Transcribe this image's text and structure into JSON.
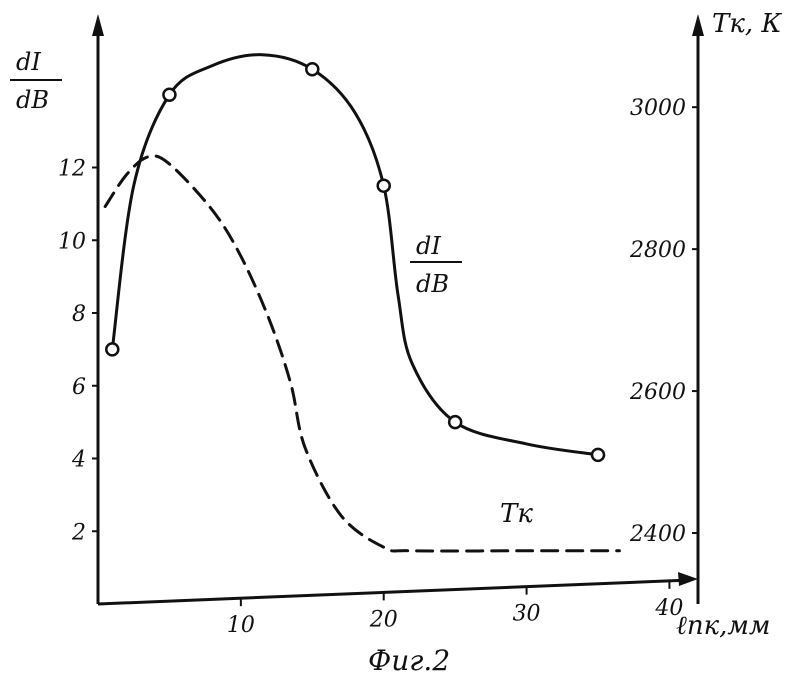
{
  "chart_data": {
    "type": "line",
    "caption": "Фиг.2",
    "x_axis": {
      "label": "ℓпк,мм",
      "ticks": [
        10,
        20,
        30,
        40
      ],
      "range": [
        0,
        42
      ]
    },
    "y_left": {
      "label_numerator": "dI",
      "label_denominator": "dB",
      "ticks": [
        2,
        4,
        6,
        8,
        10,
        12
      ],
      "range": [
        0,
        16
      ]
    },
    "y_right": {
      "label": "Тк, К",
      "ticks": [
        2400,
        2600,
        2800,
        3000
      ],
      "range": [
        2300,
        3120
      ]
    },
    "series": [
      {
        "name_numerator": "dI",
        "name_denominator": "dB",
        "axis": "left",
        "style": "solid",
        "markers": true,
        "points": [
          {
            "x": 1,
            "y": 7.0
          },
          {
            "x": 5,
            "y": 14.0
          },
          {
            "x": 15,
            "y": 14.7
          },
          {
            "x": 20,
            "y": 11.5
          },
          {
            "x": 25,
            "y": 5.0
          },
          {
            "x": 35,
            "y": 4.1
          }
        ],
        "curve": [
          [
            1,
            7.0
          ],
          [
            2.5,
            11.5
          ],
          [
            5,
            14.0
          ],
          [
            8,
            14.8
          ],
          [
            11.5,
            15.1
          ],
          [
            15,
            14.7
          ],
          [
            18,
            13.5
          ],
          [
            20,
            11.5
          ],
          [
            21,
            8.5
          ],
          [
            22,
            6.6
          ],
          [
            25,
            5.0
          ],
          [
            30,
            4.4
          ],
          [
            35,
            4.1
          ]
        ]
      },
      {
        "name": "Тк",
        "axis": "right",
        "style": "dashed",
        "markers": false,
        "curve": [
          [
            0.5,
            2860
          ],
          [
            2,
            2905
          ],
          [
            3.5,
            2930
          ],
          [
            5,
            2920
          ],
          [
            8,
            2855
          ],
          [
            10,
            2790
          ],
          [
            12,
            2700
          ],
          [
            13.5,
            2610
          ],
          [
            14.5,
            2520
          ],
          [
            17,
            2425
          ],
          [
            20,
            2380
          ],
          [
            22,
            2375
          ],
          [
            30,
            2375
          ],
          [
            36.5,
            2375
          ]
        ]
      }
    ]
  }
}
